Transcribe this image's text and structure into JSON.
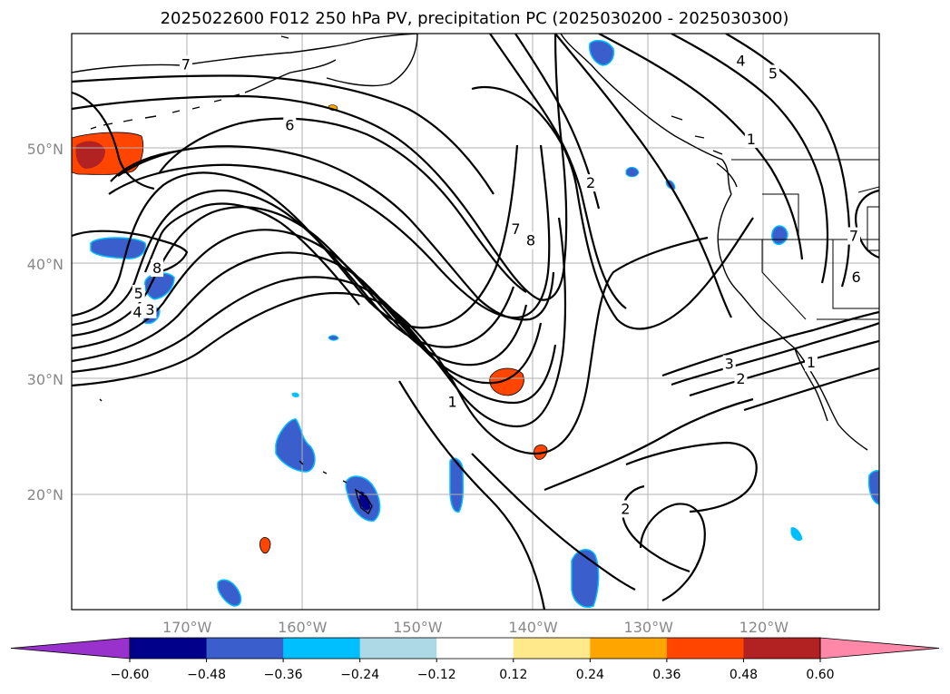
{
  "chart_data": {
    "type": "contour",
    "title": "2025022600 F012 250 hPa PV, precipitation PC (2025030200 - 2025030300)",
    "map_extent": {
      "lon": [
        -180,
        -110
      ],
      "lat": [
        10,
        60
      ]
    },
    "x_ticks": [
      {
        "lon": -170,
        "label": "170°W"
      },
      {
        "lon": -160,
        "label": "160°W"
      },
      {
        "lon": -150,
        "label": "150°W"
      },
      {
        "lon": -140,
        "label": "140°W"
      },
      {
        "lon": -130,
        "label": "130°W"
      },
      {
        "lon": -120,
        "label": "120°W"
      }
    ],
    "y_ticks": [
      {
        "lat": 50,
        "label": "50°N"
      },
      {
        "lat": 40,
        "label": "40°N"
      },
      {
        "lat": 30,
        "label": "30°N"
      },
      {
        "lat": 20,
        "label": "20°N"
      }
    ],
    "grid": true,
    "colorbar": {
      "levels": [
        -0.6,
        -0.48,
        -0.36,
        -0.24,
        -0.12,
        0.12,
        0.24,
        0.36,
        0.48,
        0.6
      ],
      "tick_labels": [
        "−0.60",
        "−0.48",
        "−0.36",
        "−0.24",
        "−0.12",
        "0.12",
        "0.24",
        "0.36",
        "0.48",
        "0.60"
      ],
      "colors": [
        "#9932cc",
        "#00008b",
        "#3a5fcd",
        "#00bfff",
        "#add8e6",
        "#ffffff",
        "#ffe98a",
        "#ffa500",
        "#ff4500",
        "#b22222",
        "#ff88a8"
      ],
      "extend": "both"
    },
    "contour_labels": [
      {
        "text": "7",
        "lon": -170.1,
        "lat": 57.3
      },
      {
        "text": "6",
        "lon": -161.1,
        "lat": 52.0
      },
      {
        "text": "8",
        "lon": -172.6,
        "lat": 39.6
      },
      {
        "text": "5",
        "lon": -174.2,
        "lat": 37.4
      },
      {
        "text": "4",
        "lon": -174.3,
        "lat": 35.8
      },
      {
        "text": "3",
        "lon": -173.2,
        "lat": 36.0
      },
      {
        "text": "1",
        "lon": -147.0,
        "lat": 28.0
      },
      {
        "text": "2",
        "lon": -135.0,
        "lat": 47.0
      },
      {
        "text": "7",
        "lon": -141.5,
        "lat": 43.0
      },
      {
        "text": "8",
        "lon": -140.2,
        "lat": 42.0
      },
      {
        "text": "4",
        "lon": -122.0,
        "lat": 57.6
      },
      {
        "text": "5",
        "lon": -119.2,
        "lat": 56.5
      },
      {
        "text": "1",
        "lon": -121.1,
        "lat": 50.8
      },
      {
        "text": "7",
        "lon": -112.2,
        "lat": 42.4
      },
      {
        "text": "6",
        "lon": -112.0,
        "lat": 38.8
      },
      {
        "text": "3",
        "lon": -123.0,
        "lat": 31.3
      },
      {
        "text": "2",
        "lon": -122.0,
        "lat": 30.0
      },
      {
        "text": "1",
        "lon": -115.9,
        "lat": 31.4
      },
      {
        "text": "2",
        "lon": -132.0,
        "lat": 18.7
      }
    ]
  }
}
